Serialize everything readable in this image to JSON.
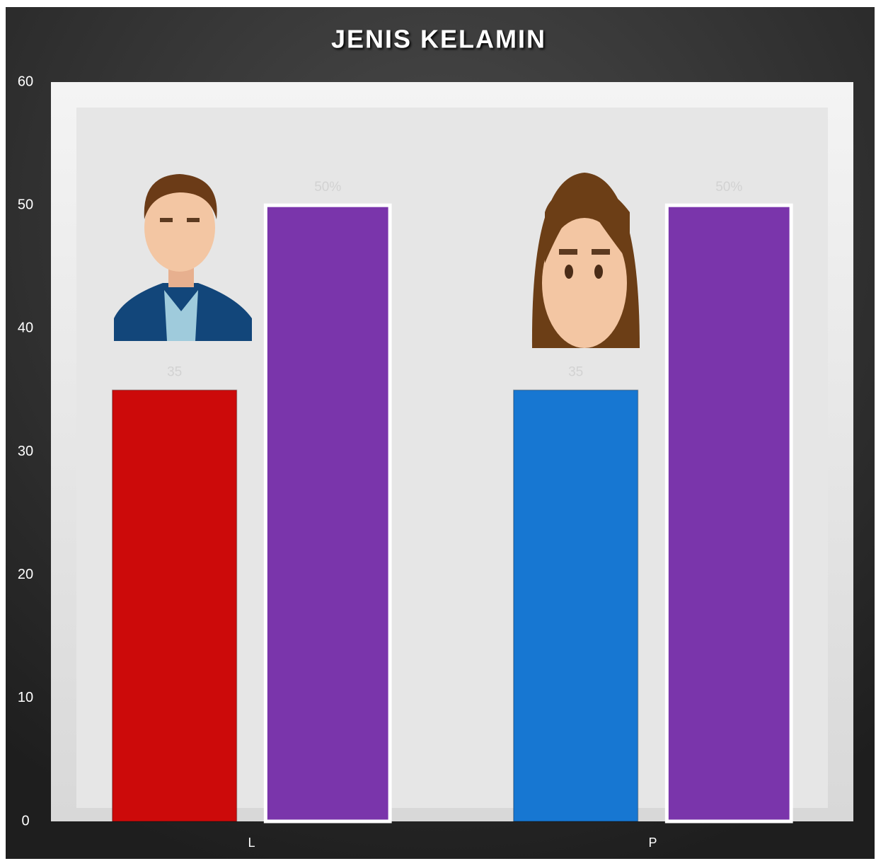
{
  "chart_data": {
    "type": "bar",
    "title": "JENIS KELAMIN",
    "categories": [
      "L",
      "P"
    ],
    "series": [
      {
        "colors": [
          "#cc0a0a",
          "#1777d2"
        ],
        "values": [
          35,
          35
        ]
      },
      {
        "color": "#7a35ab",
        "values": [
          50,
          50
        ],
        "value_labels": [
          "50%",
          "50%"
        ]
      }
    ],
    "ylim": [
      0,
      60
    ],
    "yticks": [
      0,
      10,
      20,
      30,
      40,
      50,
      60
    ],
    "grid": false
  }
}
